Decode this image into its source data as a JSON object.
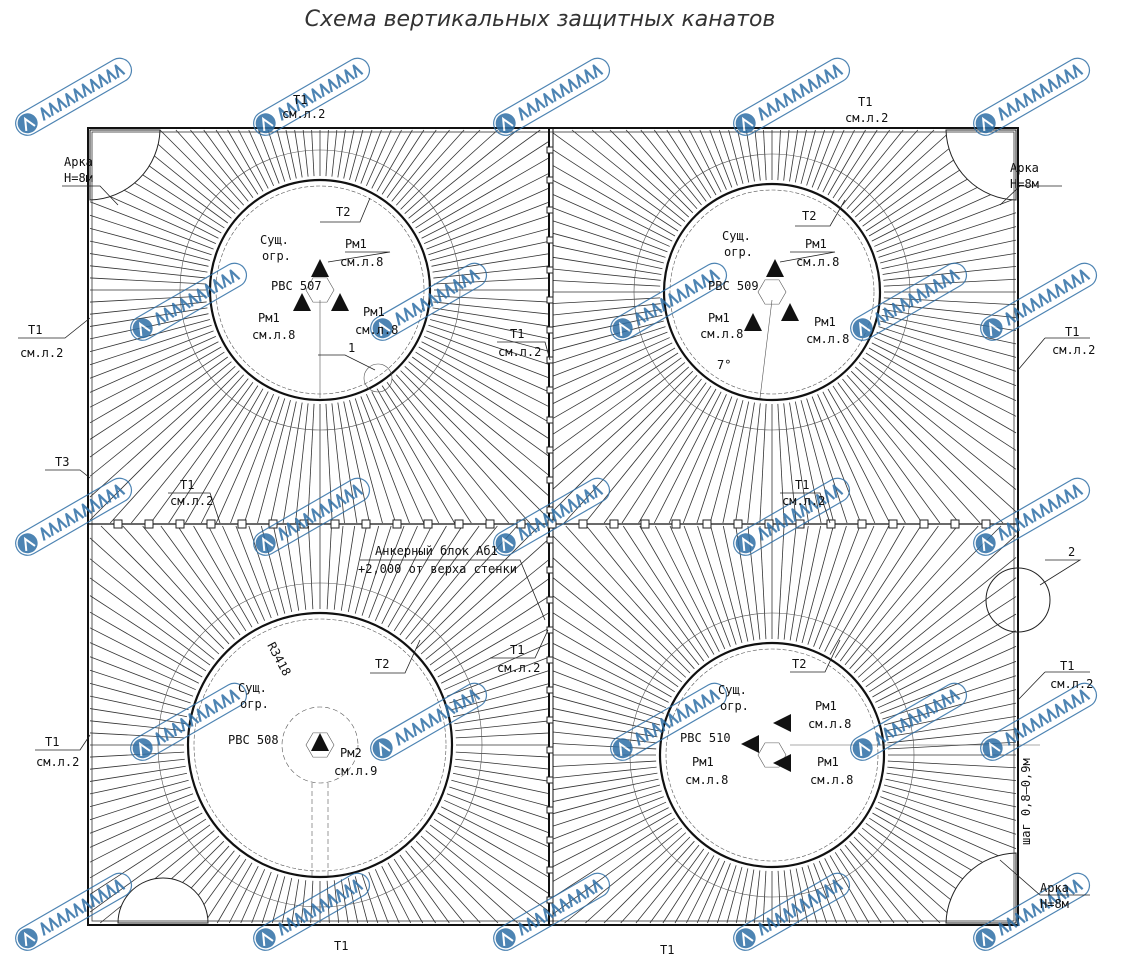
{
  "title": "Схема вертикальных защитных канатов",
  "watermark": "АВТОМАТИКА",
  "colors": {
    "watermark": "#2f6fa6",
    "lines": "#222222"
  },
  "tanks": [
    {
      "name": "РВС 507",
      "ring": "T2",
      "fence": [
        "Сущ.",
        "огр."
      ]
    },
    {
      "name": "РВС 509",
      "ring": "T2",
      "fence": [
        "Сущ.",
        "огр."
      ],
      "angle": "7°"
    },
    {
      "name": "РВС 508",
      "ring": "T2",
      "fence": [
        "Сущ.",
        "огр."
      ],
      "radius": "R3418"
    },
    {
      "name": "РВС 510",
      "ring": "T2",
      "fence": [
        "Сущ.",
        "огр."
      ]
    }
  ],
  "labels": {
    "t1": "Т1",
    "t3": "Т3",
    "sheet2": "см.л.2",
    "rm1": "Рм1",
    "rm2": "Рм2",
    "sheet8": "см.л.8",
    "sheet9": "см.л.9",
    "arch": "Арка",
    "arch_h": "Н=8м",
    "callout1": "1",
    "callout2": "2",
    "anchor_block": "Анкерный блок Аб1",
    "anchor_level": "+2,000 от верха стенки",
    "step": "шаг 0,8–0,9м"
  }
}
